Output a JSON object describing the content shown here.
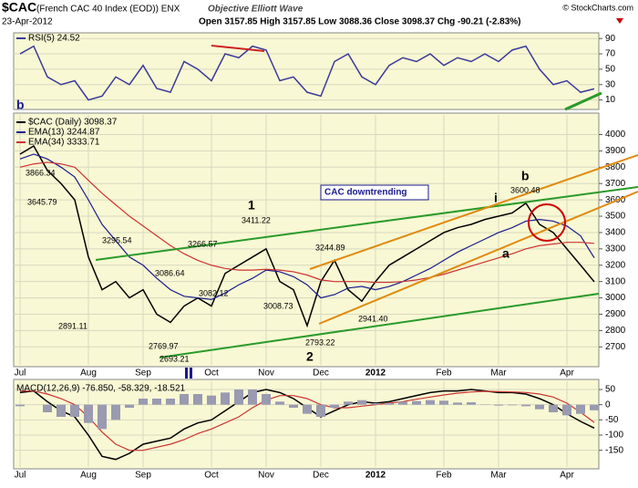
{
  "header": {
    "symbol": "$CAC",
    "name": "(French CAC 40 Index (EOD)) ENX",
    "date": "23-Apr-2012",
    "subtitle": "Objective Elliott Wave",
    "quote": "Open 3157.85  High 3157.85  Low 3088.36  Close 3098.37  Chg -90.21 (-2.83%)",
    "credit": "© StockCharts.com"
  },
  "chart_data": [
    {
      "type": "line",
      "ylim": [
        0,
        95
      ],
      "yticks": [
        10,
        30,
        50,
        70,
        90
      ],
      "grid": true,
      "series": [
        {
          "name": "RSI(5) 24.52",
          "color": "#3a3a9a",
          "values": [
            70,
            80,
            40,
            30,
            35,
            10,
            15,
            40,
            30,
            55,
            25,
            20,
            60,
            50,
            35,
            70,
            65,
            80,
            75,
            35,
            40,
            20,
            15,
            60,
            70,
            40,
            30,
            55,
            65,
            60,
            70,
            55,
            65,
            60,
            70,
            60,
            75,
            80,
            50,
            30,
            35,
            20,
            24.52
          ]
        }
      ]
    },
    {
      "type": "line",
      "ylim": [
        2590,
        4120
      ],
      "yticks": [
        2700,
        2800,
        2900,
        3000,
        3100,
        3200,
        3300,
        3400,
        3500,
        3600,
        3700,
        3800,
        3900,
        4000
      ],
      "grid": true,
      "categories": [
        "Jul",
        null,
        null,
        null,
        null,
        "Aug",
        null,
        null,
        null,
        "Sep",
        null,
        null,
        null,
        null,
        "Oct",
        null,
        null,
        null,
        "Nov",
        null,
        null,
        null,
        "Dec",
        null,
        null,
        null,
        "2012",
        null,
        null,
        null,
        null,
        "Feb",
        null,
        null,
        null,
        "Mar",
        null,
        null,
        null,
        null,
        "Apr",
        null,
        null
      ],
      "series": [
        {
          "name": "$CAC (Daily) 3098.37",
          "color": "#000000",
          "values": [
            3880,
            3930,
            3780,
            3700,
            3600,
            3250,
            3050,
            3100,
            3000,
            3050,
            2900,
            2850,
            2950,
            3000,
            2950,
            3150,
            3200,
            3250,
            3300,
            3100,
            3050,
            2830,
            3100,
            3230,
            3050,
            2980,
            3100,
            3200,
            3250,
            3300,
            3350,
            3400,
            3430,
            3450,
            3480,
            3500,
            3520,
            3580,
            3450,
            3400,
            3300,
            3200,
            3098.37
          ]
        },
        {
          "name": "EMA(13) 3244.87",
          "color": "#1a1a8c",
          "values": [
            3850,
            3880,
            3850,
            3800,
            3740,
            3600,
            3450,
            3350,
            3250,
            3200,
            3120,
            3050,
            3010,
            3000,
            2990,
            3030,
            3080,
            3120,
            3170,
            3160,
            3130,
            3080,
            3000,
            3020,
            3060,
            3070,
            3050,
            3070,
            3100,
            3140,
            3180,
            3230,
            3280,
            3320,
            3360,
            3400,
            3430,
            3470,
            3480,
            3470,
            3440,
            3380,
            3244.87
          ]
        },
        {
          "name": "EMA(34) 3333.71",
          "color": "#cc3333",
          "values": [
            3800,
            3820,
            3830,
            3820,
            3800,
            3720,
            3640,
            3570,
            3500,
            3440,
            3380,
            3320,
            3270,
            3230,
            3200,
            3180,
            3170,
            3170,
            3175,
            3170,
            3160,
            3140,
            3110,
            3100,
            3100,
            3100,
            3095,
            3095,
            3100,
            3110,
            3125,
            3145,
            3170,
            3195,
            3220,
            3245,
            3270,
            3300,
            3320,
            3330,
            3340,
            3340,
            3333.71
          ]
        }
      ],
      "annotations": [
        "3866.34",
        "3645.79",
        "2891.11",
        "3295.54",
        "3086.64",
        "2769.97",
        "2693.21",
        "3266.57",
        "3082.12",
        "3411.22",
        "3008.73",
        "3244.89",
        "2793.22",
        "2941.40",
        "3600.48",
        "1",
        "2",
        "b",
        "a",
        "i",
        "b",
        "CAC downtrending"
      ]
    },
    {
      "type": "line",
      "label": "MACD(12,26,9) -76.850, -58.329, -18.521",
      "ylim": [
        -205,
        77
      ],
      "yticks": [
        50,
        0,
        -50,
        -100,
        -150
      ],
      "grid": true,
      "categories": [
        "Jul",
        null,
        null,
        null,
        null,
        "Aug",
        null,
        null,
        null,
        "Sep",
        null,
        null,
        null,
        null,
        "Oct",
        null,
        null,
        null,
        "Nov",
        null,
        null,
        null,
        "Dec",
        null,
        null,
        null,
        "2012",
        null,
        null,
        null,
        null,
        "Feb",
        null,
        null,
        null,
        "Mar",
        null,
        null,
        null,
        null,
        "Apr",
        null,
        null
      ],
      "series": [
        {
          "color": "#000000",
          "values": [
            40,
            45,
            10,
            -20,
            -40,
            -100,
            -170,
            -180,
            -160,
            -130,
            -120,
            -110,
            -80,
            -60,
            -50,
            -20,
            10,
            40,
            50,
            40,
            20,
            -10,
            -40,
            -20,
            0,
            10,
            5,
            10,
            20,
            30,
            40,
            45,
            45,
            50,
            45,
            40,
            40,
            35,
            20,
            0,
            -30,
            -55,
            -76.85
          ]
        },
        {
          "color": "#cc3333",
          "values": [
            45,
            45,
            35,
            20,
            0,
            -40,
            -90,
            -130,
            -150,
            -150,
            -140,
            -130,
            -115,
            -95,
            -80,
            -60,
            -40,
            -10,
            15,
            30,
            30,
            20,
            0,
            -10,
            -10,
            -5,
            0,
            5,
            10,
            18,
            25,
            32,
            38,
            42,
            44,
            43,
            42,
            40,
            35,
            25,
            5,
            -25,
            -58.329
          ]
        },
        {
          "color": "#9a9ab0",
          "style": "histogram",
          "values": [
            -5,
            0,
            -25,
            -40,
            -40,
            -60,
            -80,
            -50,
            -10,
            20,
            20,
            20,
            35,
            35,
            30,
            40,
            50,
            50,
            35,
            10,
            -10,
            -30,
            -40,
            -10,
            10,
            15,
            5,
            5,
            10,
            12,
            15,
            13,
            7,
            8,
            1,
            -3,
            -2,
            -5,
            -15,
            -25,
            -35,
            -30,
            -18.521
          ]
        }
      ]
    }
  ]
}
